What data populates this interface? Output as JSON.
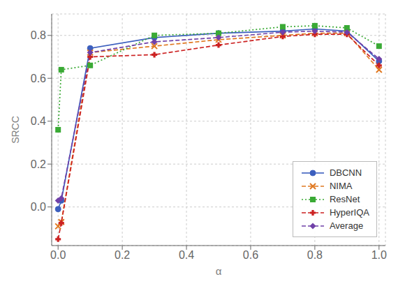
{
  "chart_data": {
    "type": "line",
    "xlabel": "α",
    "ylabel": "SRCC",
    "x": [
      0.0,
      0.01,
      0.1,
      0.3,
      0.5,
      0.7,
      0.8,
      0.9,
      1.0
    ],
    "series": [
      {
        "name": "DBCNN",
        "color": "#3c5fbe",
        "marker": "circle",
        "line_style": "solid",
        "values": [
          -0.01,
          0.03,
          0.74,
          0.79,
          0.81,
          0.82,
          0.83,
          0.82,
          0.68
        ]
      },
      {
        "name": "NIMA",
        "color": "#e07820",
        "marker": "x",
        "line_style": "dashed",
        "values": [
          -0.09,
          -0.07,
          0.72,
          0.75,
          0.78,
          0.8,
          0.81,
          0.81,
          0.64
        ]
      },
      {
        "name": "ResNet",
        "color": "#3aaa35",
        "marker": "square",
        "line_style": "dotted",
        "values": [
          0.36,
          0.64,
          0.66,
          0.8,
          0.81,
          0.84,
          0.845,
          0.835,
          0.75
        ]
      },
      {
        "name": "HyperIQA",
        "color": "#cc2222",
        "marker": "plus",
        "line_style": "dashed",
        "values": [
          -0.15,
          -0.075,
          0.7,
          0.71,
          0.755,
          0.795,
          0.805,
          0.805,
          0.66
        ]
      },
      {
        "name": "Average",
        "color": "#7040a8",
        "marker": "diamond",
        "line_style": "dashed",
        "values": [
          0.03,
          0.04,
          0.72,
          0.77,
          0.79,
          0.815,
          0.82,
          0.815,
          0.69
        ]
      }
    ],
    "xlim": [
      -0.02,
      1.02
    ],
    "ylim": [
      -0.18,
      0.9
    ],
    "xticks": [
      {
        "value": 0,
        "label": "0.0"
      },
      0.2,
      0.4,
      0.6,
      0.8,
      {
        "value": 1,
        "label": "1.0"
      }
    ],
    "yticks": [
      {
        "value": 0,
        "label": "0.0"
      },
      0.2,
      0.4,
      0.6,
      0.8
    ],
    "grid": true,
    "legend": "lower right"
  }
}
